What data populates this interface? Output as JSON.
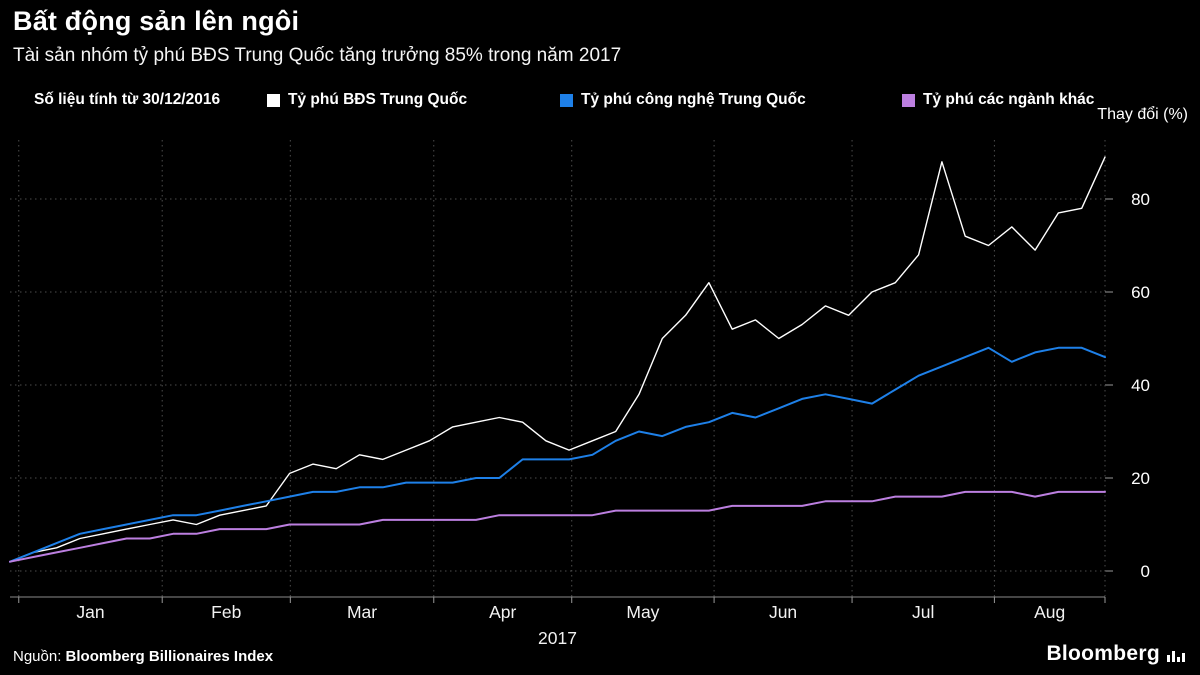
{
  "header": {
    "title": "Bất động sản lên ngôi",
    "subtitle": "Tài sản nhóm tỷ phú BĐS Trung Quốc tăng trưởng 85% trong năm 2017"
  },
  "legend": {
    "note": "Số liệu tính từ 30/12/2016",
    "items": [
      {
        "label": "Tỷ phú BĐS Trung Quốc",
        "color": "#ffffff"
      },
      {
        "label": "Tỷ phú công nghệ Trung Quốc",
        "color": "#1e80e8"
      },
      {
        "label": "Tỷ phú các ngành khác",
        "color": "#bc7fe0"
      }
    ]
  },
  "axis": {
    "y_title": "Thay đổi (%)"
  },
  "footer": {
    "source_label": "Nguồn:",
    "source_value": "Bloomberg Billionaires Index",
    "logo": "Bloomberg"
  },
  "chart_data": {
    "type": "line",
    "title": "Bất động sản lên ngôi",
    "subtitle": "Tài sản nhóm tỷ phú BĐS Trung Quốc tăng trưởng 85% trong năm 2017",
    "ylabel": "Thay đổi (%)",
    "grid": "dotted-horizontal-and-vertical",
    "legend_position": "top",
    "x_axis": {
      "month_labels": [
        "Jan",
        "Feb",
        "Mar",
        "Apr",
        "May",
        "Jun",
        "Jul",
        "Aug"
      ],
      "year_label": "2017",
      "boundaries": [
        0.008,
        0.139,
        0.256,
        0.387,
        0.513,
        0.643,
        0.769,
        0.899,
        1.0
      ],
      "range_note": "30/12/2016 to late Aug 2017"
    },
    "y_axis": {
      "ticks": [
        0,
        20,
        40,
        60,
        80
      ],
      "ylim": [
        -5.5,
        92.5
      ],
      "title": "Thay đổi (%)"
    },
    "series": [
      {
        "name": "Tỷ phú BĐS Trung Quốc",
        "color": "#ffffff",
        "width": 1.4,
        "values": [
          2,
          4,
          5,
          7,
          8,
          9,
          10,
          11,
          10,
          12,
          13,
          14,
          21,
          23,
          22,
          25,
          24,
          26,
          28,
          31,
          32,
          33,
          32,
          28,
          26,
          28,
          30,
          38,
          50,
          55,
          62,
          52,
          54,
          50,
          53,
          57,
          55,
          60,
          62,
          68,
          88,
          72,
          70,
          74,
          69,
          77,
          78,
          89
        ]
      },
      {
        "name": "Tỷ phú công nghệ Trung Quốc",
        "color": "#1e80e8",
        "width": 2,
        "values": [
          2,
          4,
          6,
          8,
          9,
          10,
          11,
          12,
          12,
          13,
          14,
          15,
          16,
          17,
          17,
          18,
          18,
          19,
          19,
          19,
          20,
          20,
          24,
          24,
          24,
          25,
          28,
          30,
          29,
          31,
          32,
          34,
          33,
          35,
          37,
          38,
          37,
          36,
          39,
          42,
          44,
          46,
          48,
          45,
          47,
          48,
          48,
          46
        ]
      },
      {
        "name": "Tỷ phú các ngành khác",
        "color": "#bc7fe0",
        "width": 2,
        "values": [
          2,
          3,
          4,
          5,
          6,
          7,
          7,
          8,
          8,
          9,
          9,
          9,
          10,
          10,
          10,
          10,
          11,
          11,
          11,
          11,
          11,
          12,
          12,
          12,
          12,
          12,
          13,
          13,
          13,
          13,
          13,
          14,
          14,
          14,
          14,
          15,
          15,
          15,
          16,
          16,
          16,
          17,
          17,
          17,
          16,
          17,
          17,
          17
        ]
      }
    ]
  }
}
